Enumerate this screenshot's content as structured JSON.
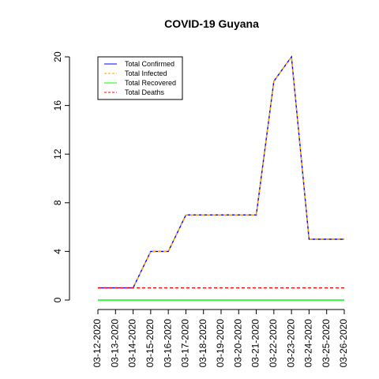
{
  "chart_data": {
    "type": "line",
    "title": "COVID-19 Guyana",
    "xlabel": "",
    "ylabel": "",
    "categories": [
      "03-12-2020",
      "03-13-2020",
      "03-14-2020",
      "03-15-2020",
      "03-16-2020",
      "03-17-2020",
      "03-18-2020",
      "03-19-2020",
      "03-20-2020",
      "03-21-2020",
      "03-22-2020",
      "03-23-2020",
      "03-24-2020",
      "03-25-2020",
      "03-26-2020"
    ],
    "y_ticks": [
      "0",
      "4",
      "8",
      "12",
      "16",
      "20"
    ],
    "ylim": [
      0,
      20
    ],
    "grid": false,
    "legend_position": "top-left",
    "series": [
      {
        "name": "Total Confirmed",
        "color": "#0000ff",
        "dash": "solid",
        "values": [
          1,
          1,
          1,
          4,
          4,
          7,
          7,
          7,
          7,
          7,
          18,
          20,
          5,
          5,
          5
        ]
      },
      {
        "name": "Total Infected",
        "color": "#ffa500",
        "dash": "dashed",
        "values": [
          1,
          1,
          1,
          4,
          4,
          7,
          7,
          7,
          7,
          7,
          18,
          20,
          5,
          5,
          5
        ]
      },
      {
        "name": "Total Recovered",
        "color": "#00ff00",
        "dash": "solid",
        "values": [
          0,
          0,
          0,
          0,
          0,
          0,
          0,
          0,
          0,
          0,
          0,
          0,
          0,
          0,
          0
        ]
      },
      {
        "name": "Total Deaths",
        "color": "#ff0000",
        "dash": "dashed",
        "values": [
          1,
          1,
          1,
          1,
          1,
          1,
          1,
          1,
          1,
          1,
          1,
          1,
          1,
          1,
          1
        ]
      }
    ]
  }
}
